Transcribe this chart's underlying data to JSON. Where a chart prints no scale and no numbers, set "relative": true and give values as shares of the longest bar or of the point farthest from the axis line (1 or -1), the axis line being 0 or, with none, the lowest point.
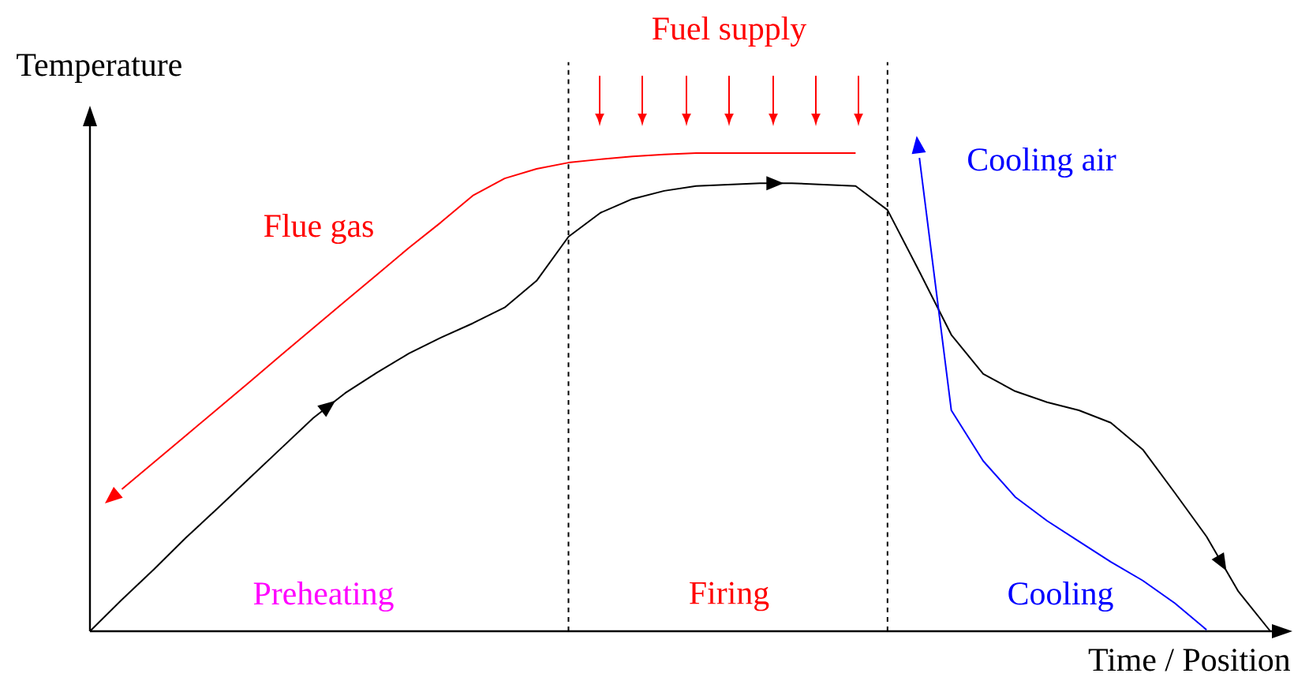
{
  "chart_data": {
    "type": "line",
    "relative": true,
    "xlabel": "Time / Position",
    "ylabel": "Temperature",
    "categories": [
      null,
      null,
      null,
      null,
      null,
      null,
      null,
      null,
      null,
      null,
      null,
      null,
      null,
      null,
      null,
      null,
      null,
      null,
      null,
      null,
      null,
      null,
      null,
      null,
      null,
      null,
      null,
      null,
      null,
      null,
      null,
      null,
      null,
      null,
      null,
      null,
      null,
      null
    ],
    "series": [
      {
        "color": "#000000",
        "values": [
          0,
          0.066,
          0.129,
          0.195,
          0.257,
          0.32,
          0.383,
          0.446,
          0.498,
          0.541,
          0.581,
          0.614,
          0.644,
          0.677,
          0.733,
          0.825,
          0.875,
          0.904,
          0.921,
          0.931,
          0.934,
          0.937,
          0.937,
          0.934,
          0.931,
          0.881,
          0.752,
          0.62,
          0.538,
          0.502,
          0.479,
          0.462,
          0.436,
          0.38,
          0.29,
          0.198,
          0.083,
          0
        ]
      },
      {
        "name": "Flue gas",
        "color": "#ff0000",
        "values": [
          null,
          0.297,
          0.353,
          0.409,
          0.465,
          0.521,
          0.578,
          0.634,
          0.69,
          0.746,
          0.802,
          0.855,
          0.911,
          0.947,
          0.967,
          0.98,
          0.987,
          0.993,
          0.997,
          1,
          1,
          1,
          1,
          1,
          1,
          null,
          null,
          null,
          null,
          null,
          null,
          null,
          null,
          null,
          null,
          null,
          null,
          null
        ]
      },
      {
        "name": "Cooling air",
        "color": "#0000ff",
        "values": [
          null,
          null,
          null,
          null,
          null,
          null,
          null,
          null,
          null,
          null,
          null,
          null,
          null,
          null,
          null,
          null,
          null,
          null,
          null,
          null,
          null,
          null,
          null,
          null,
          null,
          null,
          0.99,
          0.462,
          0.356,
          0.281,
          0.231,
          0.188,
          0.145,
          0.106,
          0.059,
          0.003,
          null,
          null
        ]
      }
    ],
    "annotations": [
      "Fuel supply",
      "Preheating",
      "Firing",
      "Cooling"
    ],
    "line_style": "solid",
    "marker": "none"
  }
}
